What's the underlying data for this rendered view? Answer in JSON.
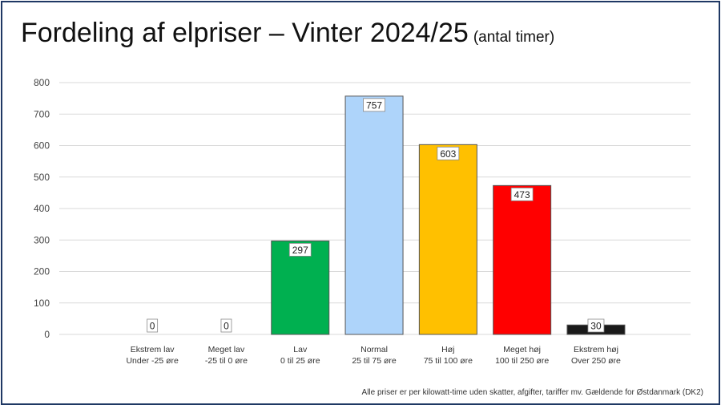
{
  "chart_data": {
    "type": "bar",
    "title": "Fordeling af elpriser – Vinter 2024/25",
    "subtitle": "(antal timer)",
    "categories": [
      {
        "name": "Ekstrem lav",
        "range": "Under -25 øre"
      },
      {
        "name": "Meget lav",
        "range": "-25 til 0 øre"
      },
      {
        "name": "Lav",
        "range": "0 til 25 øre"
      },
      {
        "name": "Normal",
        "range": "25 til 75 øre"
      },
      {
        "name": "Høj",
        "range": "75 til 100 øre"
      },
      {
        "name": "Meget høj",
        "range": "100 til 250 øre"
      },
      {
        "name": "Ekstrem høj",
        "range": "Over 250 øre"
      }
    ],
    "values": [
      0,
      0,
      297,
      757,
      603,
      473,
      30
    ],
    "colors": [
      "#00b050",
      "#00b050",
      "#00b050",
      "#aed4fa",
      "#ffc000",
      "#ff0000",
      "#1a1a1a"
    ],
    "ylim": [
      0,
      800
    ],
    "yticks": [
      0,
      100,
      200,
      300,
      400,
      500,
      600,
      700,
      800
    ],
    "grid": true,
    "legend": "none",
    "footnote": "Alle priser er per kilowatt-time uden skatter, afgifter, tariffer mv. Gældende for Østdanmark (DK2)"
  }
}
